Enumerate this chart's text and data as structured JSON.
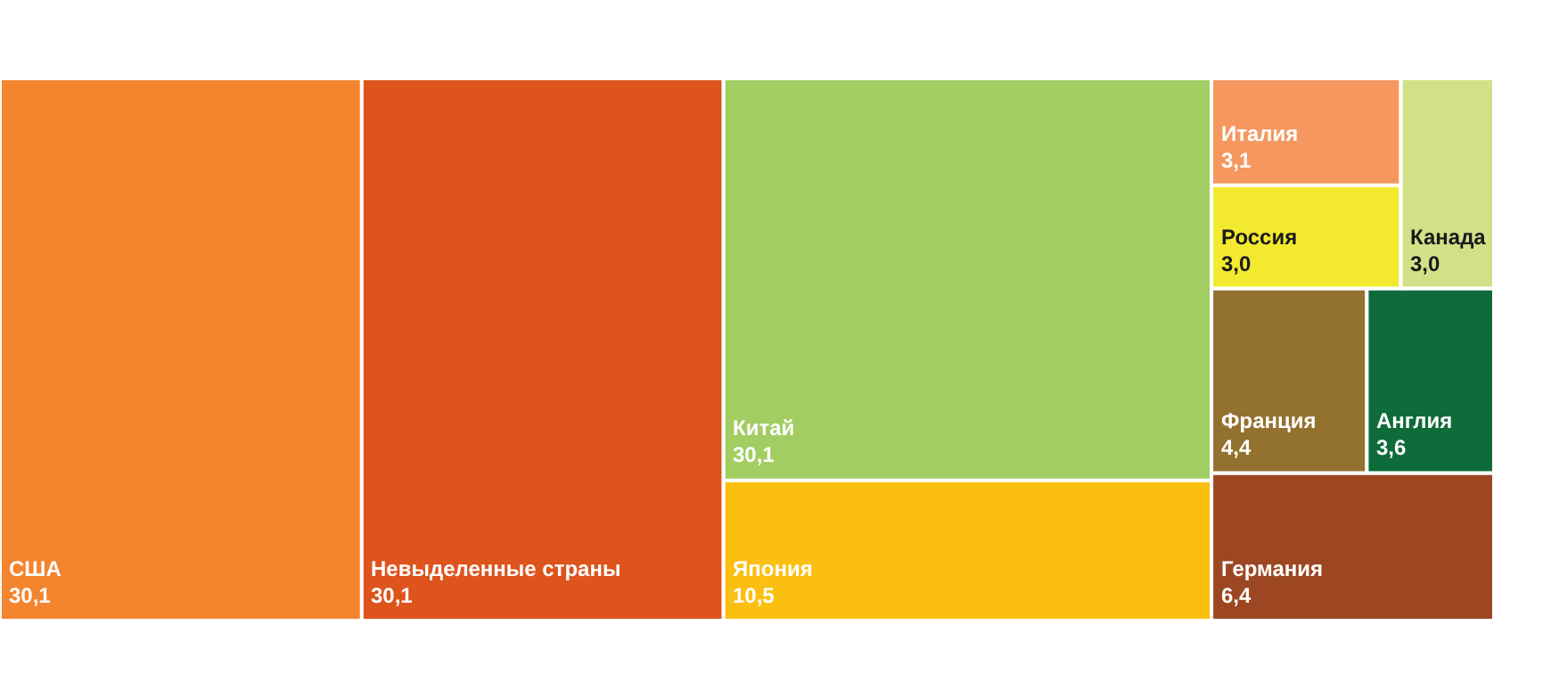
{
  "chart_data": {
    "type": "other",
    "categories": [
      "США",
      "Невыделенные страны",
      "Япония",
      "Китай",
      "Германия",
      "Франция",
      "Англия",
      "Россия",
      "Италия",
      "Канада"
    ],
    "values": [
      30.1,
      30.1,
      10.5,
      30.1,
      6.4,
      4.4,
      3.6,
      3.0,
      3.1,
      3.0
    ],
    "value_labels": [
      "30,1",
      "30,1",
      "10,5",
      "30,1",
      "6,4",
      "4,4",
      "3,6",
      "3,0",
      "3,1",
      "3,0"
    ],
    "colors": [
      "#f5842f",
      "#dd541c",
      "#fbbf12",
      "#a2cd63",
      "#9c4722",
      "#93712e",
      "#0e6b3a",
      "#f3e92e",
      "#f5975f",
      "#d3e088"
    ]
  }
}
